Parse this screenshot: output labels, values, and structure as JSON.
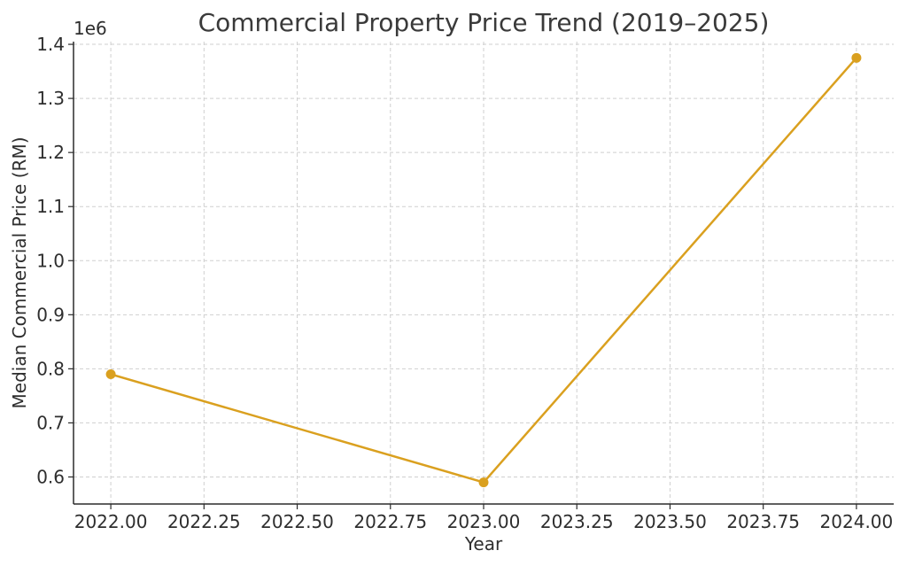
{
  "chart_data": {
    "type": "line",
    "title": "Commercial Property Price Trend (2019–2025)",
    "xlabel": "Year",
    "ylabel": "Median Commercial Price (RM)",
    "y_offset_label": "1e6",
    "x": [
      2022,
      2023,
      2024
    ],
    "series": [
      {
        "values": [
          790000,
          590000,
          1375000
        ]
      }
    ],
    "xlim": [
      2021.9,
      2024.1
    ],
    "ylim": [
      550000,
      1405000
    ],
    "xticks": [
      2022.0,
      2022.25,
      2022.5,
      2022.75,
      2023.0,
      2023.25,
      2023.5,
      2023.75,
      2024.0
    ],
    "xtick_labels": [
      "2022.00",
      "2022.25",
      "2022.50",
      "2022.75",
      "2023.00",
      "2023.25",
      "2023.50",
      "2023.75",
      "2024.00"
    ],
    "yticks": [
      600000,
      700000,
      800000,
      900000,
      1000000,
      1100000,
      1200000,
      1300000,
      1400000
    ],
    "ytick_labels": [
      "0.6",
      "0.7",
      "0.8",
      "0.9",
      "1.0",
      "1.1",
      "1.2",
      "1.3",
      "1.4"
    ],
    "grid": true,
    "line_color": "#DAA01F"
  }
}
